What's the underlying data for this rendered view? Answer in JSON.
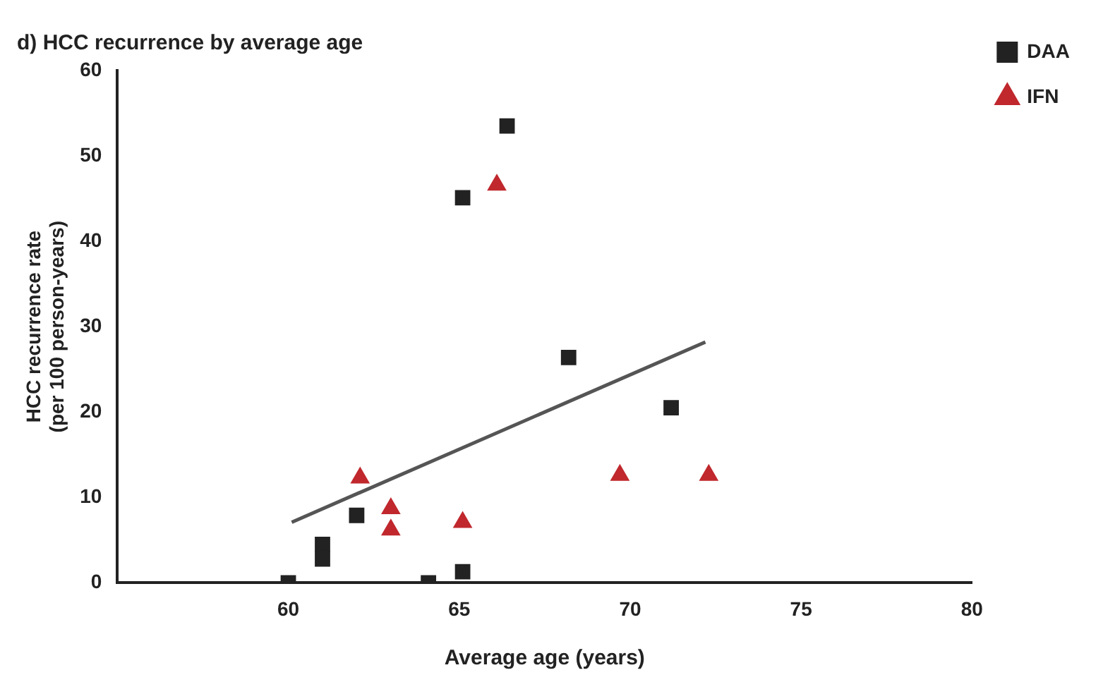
{
  "chart_data": {
    "type": "scatter",
    "title": "d) HCC recurrence by average age",
    "xlabel": "Average age (years)",
    "ylabel": "HCC recurrence rate\n(per 100 person-years)",
    "xlim": [
      55,
      80
    ],
    "xticks": [
      60,
      65,
      70,
      75,
      80
    ],
    "ylim": [
      0,
      60
    ],
    "yticks": [
      0,
      10,
      20,
      30,
      40,
      50,
      60
    ],
    "grid": false,
    "legend": "top right",
    "series": [
      {
        "name": "DAA",
        "color": "#222222",
        "marker": "square",
        "x": [
          60,
          61,
          61,
          62,
          64.1,
          65.1,
          65.1,
          66.4,
          68.2,
          71.2
        ],
        "values": [
          0,
          2.8,
          4.5,
          7.9,
          0,
          1.3,
          45.1,
          53.5,
          26.4,
          20.5
        ]
      },
      {
        "name": "IFN",
        "color": "#c0282d",
        "marker": "triangle",
        "x": [
          62.1,
          63,
          63,
          65.1,
          66.1,
          69.7,
          72.3
        ],
        "values": [
          12.3,
          8.7,
          6.2,
          7.1,
          46.6,
          12.6,
          12.6
        ]
      },
      {
        "type": "line",
        "color": "#555555",
        "marker": "none",
        "x": [
          60.1,
          72.2
        ],
        "values": [
          7.1,
          28.2
        ]
      }
    ]
  }
}
